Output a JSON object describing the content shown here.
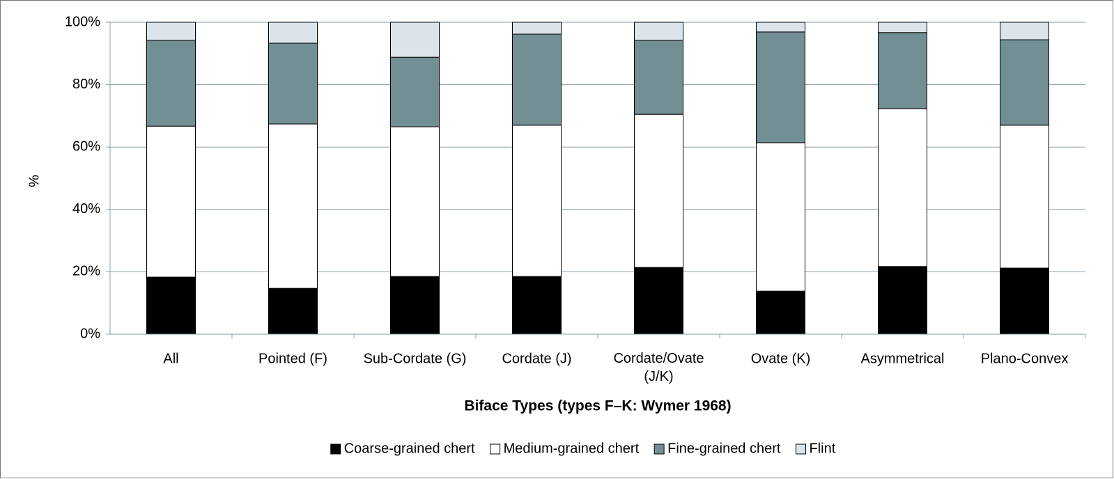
{
  "chart_data": {
    "type": "bar",
    "stacked": true,
    "x_label": "Biface Types (types F–K: Wymer 1968)",
    "y_label": "%",
    "categories": [
      "All",
      "Pointed (F)",
      "Sub-Cordate (G)",
      "Cordate (J)",
      "Cordate/Ovate (J/K)",
      "Ovate (K)",
      "Asymmetrical",
      "Plano-Convex"
    ],
    "series": [
      {
        "name": "Coarse-grained chert",
        "color": "#000000",
        "values": [
          18.3,
          14.7,
          18.5,
          18.5,
          21.4,
          13.8,
          21.7,
          21.2
        ]
      },
      {
        "name": "Medium-grained chert",
        "color": "#ffffff",
        "values": [
          48.4,
          52.7,
          48.0,
          48.5,
          49.1,
          47.6,
          50.6,
          45.8
        ]
      },
      {
        "name": "Fine-grained chert",
        "color": "#728f94",
        "values": [
          27.5,
          25.9,
          22.3,
          29.2,
          23.7,
          35.5,
          24.4,
          27.4
        ]
      },
      {
        "name": "Flint",
        "color": "#dbe4ea",
        "values": [
          5.8,
          6.7,
          11.2,
          3.8,
          5.8,
          3.1,
          3.3,
          5.6
        ]
      }
    ],
    "ylim": [
      0,
      100
    ],
    "yticks": [
      {
        "value": 0,
        "label": "0%"
      },
      {
        "value": 20,
        "label": "20%"
      },
      {
        "value": 40,
        "label": "40%"
      },
      {
        "value": 60,
        "label": "60%"
      },
      {
        "value": 80,
        "label": "80%"
      },
      {
        "value": 100,
        "label": "100%"
      }
    ],
    "grid": true,
    "legend": "bottom"
  }
}
